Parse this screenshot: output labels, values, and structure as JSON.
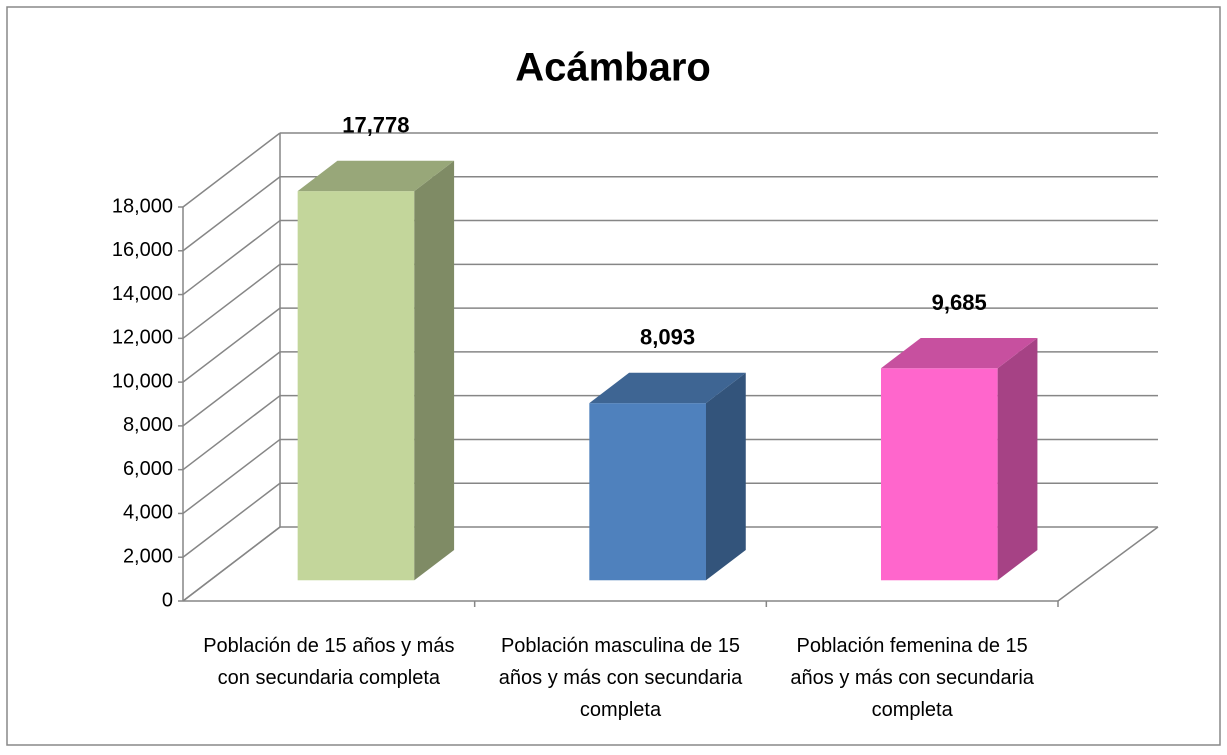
{
  "chart_data": {
    "type": "bar3d",
    "title": "Acámbaro",
    "categories": [
      "Población de 15 años y más con secundaria completa",
      "Población masculina de 15 años y más con secundaria completa",
      "Población femenina de 15 años y más con secundaria completa"
    ],
    "values": [
      17778,
      8093,
      9685
    ],
    "value_labels": [
      "17,778",
      "8,093",
      "9,685"
    ],
    "colors": [
      "#c3d69b",
      "#4f81bd",
      "#ff66cc"
    ],
    "ylim": [
      0,
      18000
    ],
    "yticks": [
      0,
      {
        "value": 2000,
        "label": "2,000"
      },
      {
        "value": 4000,
        "label": "4,000"
      },
      {
        "value": 6000,
        "label": "6,000"
      },
      {
        "value": 8000,
        "label": "8,000"
      },
      {
        "value": 10000,
        "label": "10,000"
      },
      {
        "value": 12000,
        "label": "12,000"
      },
      {
        "value": 14000,
        "label": "14,000"
      },
      {
        "value": 16000,
        "label": "16,000"
      },
      {
        "value": 18000,
        "label": "18,000"
      }
    ],
    "grid": true
  }
}
